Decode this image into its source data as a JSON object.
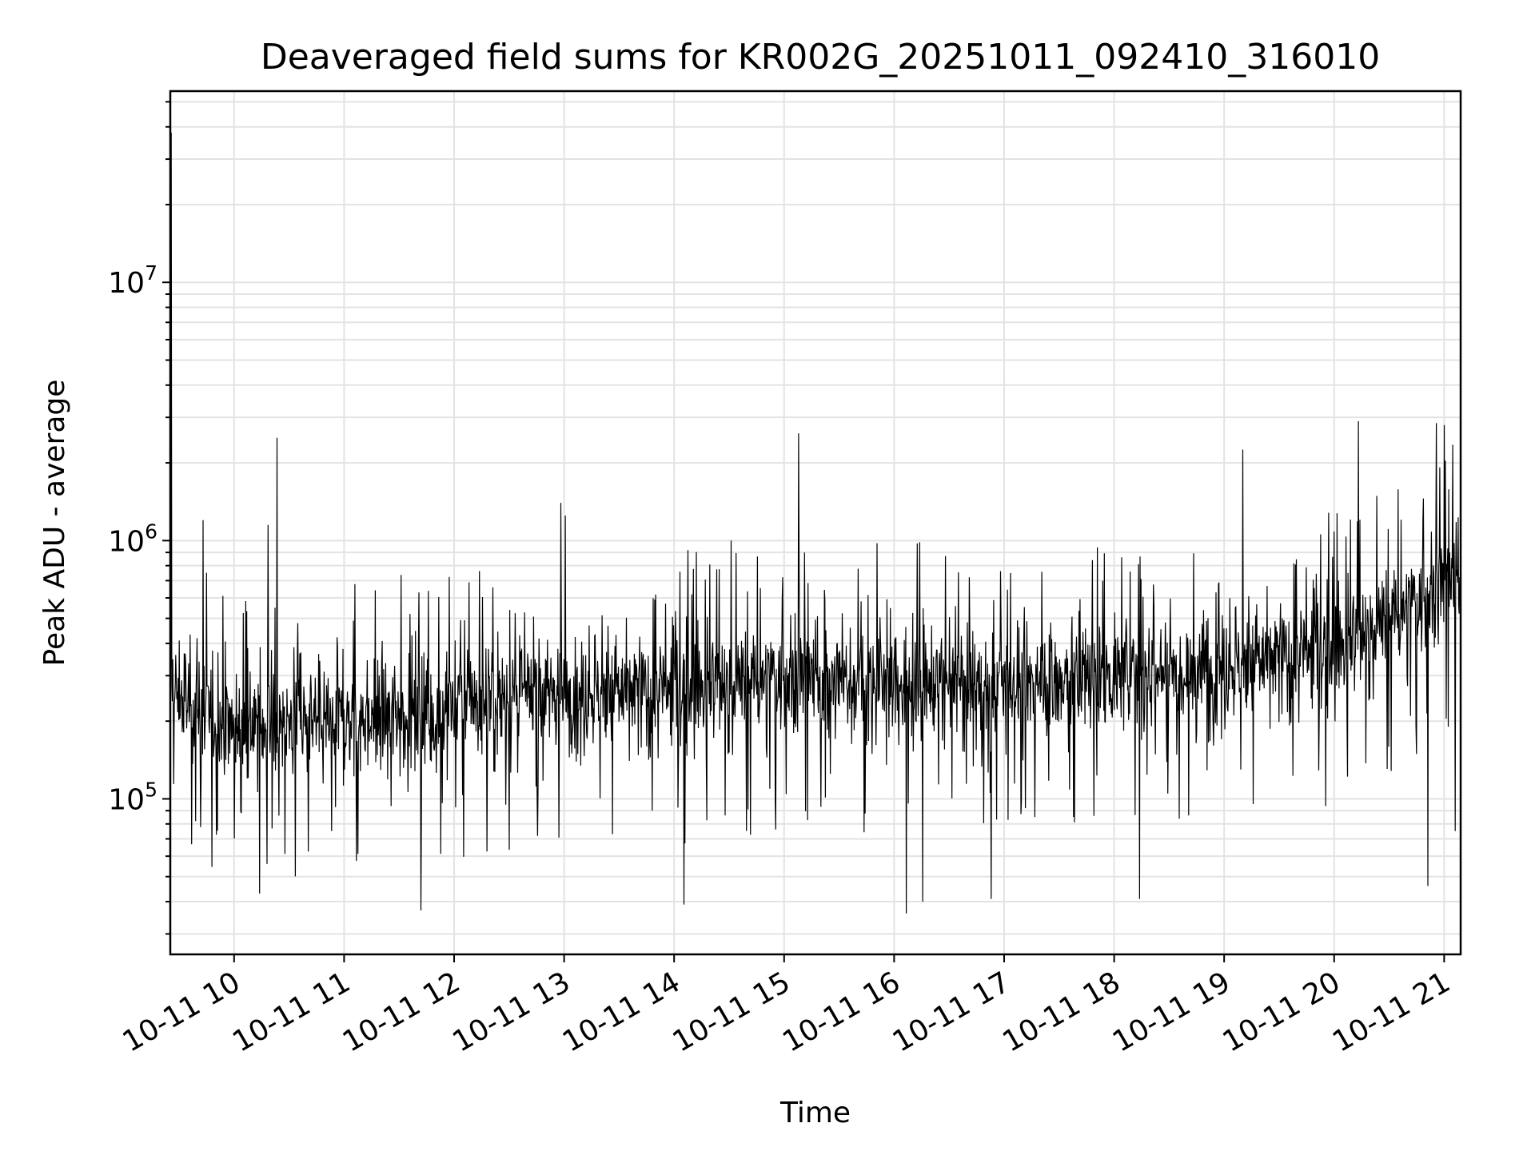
{
  "chart_data": {
    "type": "line",
    "title": "Deaveraged field sums for KR002G_20251011_092410_316010",
    "xlabel": "Time",
    "ylabel": "Peak ADU - average",
    "yscale": "log",
    "ylim": [
      25000,
      55000000
    ],
    "xlim_hours": [
      9.42,
      21.15
    ],
    "grid": true,
    "x_ticks": [
      {
        "hour": 10,
        "label": "10-11 10"
      },
      {
        "hour": 11,
        "label": "10-11 11"
      },
      {
        "hour": 12,
        "label": "10-11 12"
      },
      {
        "hour": 13,
        "label": "10-11 13"
      },
      {
        "hour": 14,
        "label": "10-11 14"
      },
      {
        "hour": 15,
        "label": "10-11 15"
      },
      {
        "hour": 16,
        "label": "10-11 16"
      },
      {
        "hour": 17,
        "label": "10-11 17"
      },
      {
        "hour": 18,
        "label": "10-11 18"
      },
      {
        "hour": 19,
        "label": "10-11 19"
      },
      {
        "hour": 20,
        "label": "10-11 20"
      },
      {
        "hour": 21,
        "label": "10-11 21"
      }
    ],
    "y_ticks": [
      {
        "value": 100000,
        "base": "10",
        "exp": "5"
      },
      {
        "value": 1000000,
        "base": "10",
        "exp": "6"
      },
      {
        "value": 10000000,
        "base": "10",
        "exp": "7"
      }
    ],
    "series": [
      {
        "name": "Peak ADU - average",
        "color": "#000000",
        "baseline_levels": [
          {
            "hour": 9.42,
            "value": 260000
          },
          {
            "hour": 10.0,
            "value": 190000
          },
          {
            "hour": 11.0,
            "value": 200000
          },
          {
            "hour": 12.0,
            "value": 230000
          },
          {
            "hour": 13.0,
            "value": 260000
          },
          {
            "hour": 14.0,
            "value": 260000
          },
          {
            "hour": 15.0,
            "value": 290000
          },
          {
            "hour": 16.0,
            "value": 280000
          },
          {
            "hour": 17.0,
            "value": 280000
          },
          {
            "hour": 18.0,
            "value": 300000
          },
          {
            "hour": 19.0,
            "value": 330000
          },
          {
            "hour": 20.0,
            "value": 370000
          },
          {
            "hour": 21.0,
            "value": 650000
          },
          {
            "hour": 21.15,
            "value": 700000
          }
        ],
        "spikes": [
          {
            "hour": 9.43,
            "value": 38000000
          },
          {
            "hour": 9.72,
            "value": 1200000
          },
          {
            "hour": 10.31,
            "value": 1150000
          },
          {
            "hour": 10.39,
            "value": 2500000
          },
          {
            "hour": 12.97,
            "value": 1400000
          },
          {
            "hour": 13.01,
            "value": 1250000
          },
          {
            "hour": 14.52,
            "value": 1000000
          },
          {
            "hour": 15.13,
            "value": 2600000
          },
          {
            "hour": 19.17,
            "value": 2250000
          },
          {
            "hour": 20.22,
            "value": 2900000
          },
          {
            "hour": 20.93,
            "value": 2850000
          },
          {
            "hour": 21.0,
            "value": 2800000
          },
          {
            "hour": 21.08,
            "value": 2350000
          }
        ],
        "dips": [
          {
            "hour": 10.23,
            "value": 43000
          },
          {
            "hour": 11.7,
            "value": 37000
          },
          {
            "hour": 14.09,
            "value": 39000
          },
          {
            "hour": 16.11,
            "value": 36000
          },
          {
            "hour": 16.26,
            "value": 40000
          },
          {
            "hour": 16.88,
            "value": 41000
          },
          {
            "hour": 18.23,
            "value": 41000
          },
          {
            "hour": 20.85,
            "value": 46000
          },
          {
            "hour": 21.1,
            "value": 75000
          }
        ]
      }
    ]
  }
}
